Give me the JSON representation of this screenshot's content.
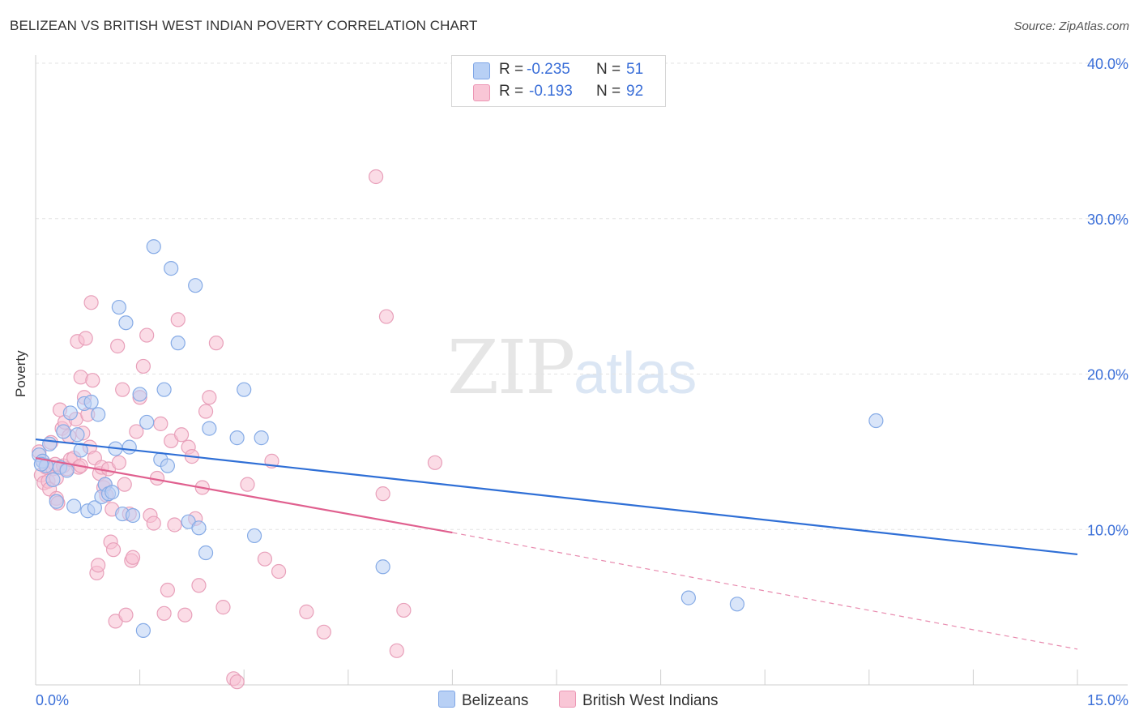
{
  "header": {
    "title": "BELIZEAN VS BRITISH WEST INDIAN POVERTY CORRELATION CHART",
    "source": "Source: ZipAtlas.com"
  },
  "legend": {
    "belizeans": {
      "r_label": "R =",
      "r_value": "-0.235",
      "n_label": "N =",
      "n_value": "51"
    },
    "bwi": {
      "r_label": "R =",
      "r_value": "-0.193",
      "n_label": "N =",
      "n_value": "92"
    }
  },
  "bottom_legend": {
    "belizeans": "Belizeans",
    "bwi": "British West Indians"
  },
  "watermark": {
    "zip": "ZIP",
    "atlas": "atlas"
  },
  "colors": {
    "blue": "#3b6fd8",
    "blue_fill": "#aec9f3",
    "pink": "#e0608f",
    "pink_fill": "#f6b8cc",
    "tick_text": "#3b6fd8"
  },
  "chart_data": {
    "type": "scatter",
    "title": "BELIZEAN VS BRITISH WEST INDIAN POVERTY CORRELATION CHART",
    "xlabel": "",
    "ylabel": "Poverty",
    "xlim": [
      0,
      15
    ],
    "ylim": [
      0,
      40
    ],
    "x_tick_labels": [
      {
        "value": 0,
        "label": "0.0%"
      },
      {
        "value": 15,
        "label": "15.0%"
      }
    ],
    "y_tick_labels": [
      {
        "value": 10,
        "label": "10.0%"
      },
      {
        "value": 20,
        "label": "20.0%"
      },
      {
        "value": 30,
        "label": "30.0%"
      },
      {
        "value": 40,
        "label": "40.0%"
      }
    ],
    "series": [
      {
        "name": "Belizeans",
        "color": "#3b6fd8",
        "r": -0.235,
        "n": 51,
        "trend": {
          "x0": 0,
          "y0": 15.8,
          "x1": 15,
          "y1": 8.4
        },
        "points": [
          [
            0.05,
            14.8
          ],
          [
            0.1,
            14.4
          ],
          [
            0.15,
            14.1
          ],
          [
            0.2,
            15.5
          ],
          [
            0.25,
            13.2
          ],
          [
            0.3,
            11.8
          ],
          [
            0.35,
            14.0
          ],
          [
            0.4,
            16.3
          ],
          [
            0.45,
            13.8
          ],
          [
            0.5,
            17.5
          ],
          [
            0.55,
            11.5
          ],
          [
            0.6,
            16.1
          ],
          [
            0.65,
            15.1
          ],
          [
            0.7,
            18.1
          ],
          [
            0.75,
            11.2
          ],
          [
            0.8,
            18.2
          ],
          [
            0.85,
            11.4
          ],
          [
            0.9,
            17.4
          ],
          [
            0.95,
            12.1
          ],
          [
            1.0,
            12.9
          ],
          [
            1.05,
            12.3
          ],
          [
            1.1,
            12.4
          ],
          [
            1.15,
            15.2
          ],
          [
            1.2,
            24.3
          ],
          [
            1.25,
            11.0
          ],
          [
            1.3,
            23.3
          ],
          [
            1.35,
            15.3
          ],
          [
            1.4,
            10.9
          ],
          [
            1.5,
            18.7
          ],
          [
            1.55,
            3.5
          ],
          [
            1.6,
            16.9
          ],
          [
            1.7,
            28.2
          ],
          [
            1.8,
            14.5
          ],
          [
            1.85,
            19.0
          ],
          [
            1.9,
            14.1
          ],
          [
            1.95,
            26.8
          ],
          [
            2.05,
            22.0
          ],
          [
            2.2,
            10.5
          ],
          [
            2.3,
            25.7
          ],
          [
            2.35,
            10.1
          ],
          [
            2.45,
            8.5
          ],
          [
            2.5,
            16.5
          ],
          [
            2.9,
            15.9
          ],
          [
            3.0,
            19.0
          ],
          [
            3.15,
            9.6
          ],
          [
            3.25,
            15.9
          ],
          [
            5.0,
            7.6
          ],
          [
            12.1,
            17.0
          ],
          [
            9.4,
            5.6
          ],
          [
            10.1,
            5.2
          ],
          [
            0.08,
            14.2
          ]
        ]
      },
      {
        "name": "British West Indians",
        "color": "#e0608f",
        "r": -0.193,
        "n": 92,
        "trend": {
          "x0": 0,
          "y0": 14.6,
          "x1": 6.0,
          "y1": 9.8,
          "dash_x1": 15,
          "dash_y1": 2.3
        },
        "points": [
          [
            0.05,
            15.0
          ],
          [
            0.08,
            13.5
          ],
          [
            0.1,
            14.4
          ],
          [
            0.12,
            13.0
          ],
          [
            0.15,
            14.0
          ],
          [
            0.18,
            13.1
          ],
          [
            0.2,
            12.6
          ],
          [
            0.22,
            15.6
          ],
          [
            0.25,
            13.9
          ],
          [
            0.28,
            14.2
          ],
          [
            0.3,
            12.0
          ],
          [
            0.32,
            11.7
          ],
          [
            0.35,
            17.7
          ],
          [
            0.38,
            16.5
          ],
          [
            0.4,
            14.1
          ],
          [
            0.42,
            16.9
          ],
          [
            0.45,
            13.9
          ],
          [
            0.48,
            16.0
          ],
          [
            0.5,
            14.5
          ],
          [
            0.55,
            14.6
          ],
          [
            0.58,
            17.1
          ],
          [
            0.6,
            22.1
          ],
          [
            0.62,
            14.0
          ],
          [
            0.65,
            19.8
          ],
          [
            0.68,
            16.2
          ],
          [
            0.7,
            18.5
          ],
          [
            0.72,
            22.3
          ],
          [
            0.75,
            17.4
          ],
          [
            0.78,
            15.3
          ],
          [
            0.8,
            24.6
          ],
          [
            0.82,
            19.6
          ],
          [
            0.85,
            14.6
          ],
          [
            0.88,
            7.2
          ],
          [
            0.9,
            7.7
          ],
          [
            0.92,
            13.6
          ],
          [
            0.95,
            14.0
          ],
          [
            0.98,
            12.7
          ],
          [
            1.0,
            12.9
          ],
          [
            1.02,
            12.2
          ],
          [
            1.05,
            13.9
          ],
          [
            1.08,
            9.2
          ],
          [
            1.1,
            11.3
          ],
          [
            1.12,
            8.7
          ],
          [
            1.15,
            4.1
          ],
          [
            1.18,
            21.8
          ],
          [
            1.2,
            14.3
          ],
          [
            1.25,
            19.0
          ],
          [
            1.28,
            12.9
          ],
          [
            1.3,
            4.5
          ],
          [
            1.35,
            11.0
          ],
          [
            1.38,
            8.0
          ],
          [
            1.4,
            8.2
          ],
          [
            1.45,
            16.3
          ],
          [
            1.5,
            18.5
          ],
          [
            1.55,
            20.5
          ],
          [
            1.6,
            22.5
          ],
          [
            1.65,
            10.9
          ],
          [
            1.7,
            10.4
          ],
          [
            1.75,
            13.3
          ],
          [
            1.8,
            16.8
          ],
          [
            1.85,
            4.6
          ],
          [
            1.9,
            6.1
          ],
          [
            1.95,
            15.7
          ],
          [
            2.0,
            10.3
          ],
          [
            2.05,
            23.5
          ],
          [
            2.1,
            16.1
          ],
          [
            2.15,
            4.5
          ],
          [
            2.2,
            15.3
          ],
          [
            2.25,
            14.7
          ],
          [
            2.3,
            10.7
          ],
          [
            2.35,
            6.4
          ],
          [
            2.4,
            12.7
          ],
          [
            2.45,
            17.6
          ],
          [
            2.5,
            18.5
          ],
          [
            2.6,
            22.0
          ],
          [
            2.7,
            5.0
          ],
          [
            2.85,
            0.4
          ],
          [
            2.9,
            0.2
          ],
          [
            3.05,
            12.9
          ],
          [
            3.3,
            8.1
          ],
          [
            3.4,
            14.4
          ],
          [
            3.5,
            7.3
          ],
          [
            3.9,
            4.7
          ],
          [
            4.15,
            3.4
          ],
          [
            4.9,
            32.7
          ],
          [
            5.0,
            12.3
          ],
          [
            5.05,
            23.7
          ],
          [
            5.3,
            4.8
          ],
          [
            5.2,
            2.2
          ],
          [
            5.75,
            14.3
          ],
          [
            0.65,
            14.1
          ],
          [
            0.3,
            13.3
          ]
        ]
      }
    ]
  }
}
